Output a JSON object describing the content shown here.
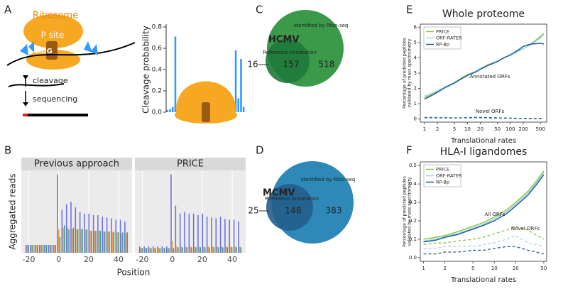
{
  "panels": [
    "A",
    "B",
    "C",
    "D",
    "E",
    "F"
  ],
  "diagram": {
    "ribosome": "Ribosome",
    "p_site": "P site",
    "codon": "AUG",
    "steps": [
      "cleavage",
      "sequencing"
    ]
  },
  "chart_data": [
    {
      "type": "bar",
      "ylabel": "Cleavage probability",
      "color": "#3399ff",
      "values": [
        0.02,
        0.03,
        0.05,
        0.71,
        0.1,
        0.12,
        0.02,
        0.01,
        0.01,
        0.01,
        0.01,
        0.01,
        0.01,
        0.01,
        0.01,
        0.01,
        0.01,
        0.01,
        0.01,
        0.01,
        0.01,
        0.01,
        0.01,
        0.02,
        0.1,
        0.12,
        0.58,
        0.13,
        0.5,
        0.05
      ],
      "ylim": [
        0,
        0.8
      ],
      "yticks": [
        {
          "value": 0,
          "label": "0.0"
        },
        {
          "value": 0.2,
          "label": "0.2"
        },
        {
          "value": 0.4,
          "label": "0.4"
        },
        {
          "value": 0.6,
          "label": "0.6"
        },
        {
          "value": 0.8,
          "label": "0.8"
        }
      ]
    },
    {
      "type": "facet-bar",
      "title": "Previous approach",
      "xlabel": "Position",
      "ylabel": "Aggregated reads",
      "x": [
        -21,
        -18,
        -15,
        -12,
        -9,
        -6,
        -3,
        0,
        3,
        6,
        9,
        12,
        15,
        18,
        21,
        24,
        27,
        30,
        33,
        36,
        39,
        42,
        45
      ],
      "series": [
        {
          "color": "#6a6ee0",
          "values": [
            0.1,
            0.1,
            0.1,
            0.1,
            0.1,
            0.1,
            0.1,
            1.0,
            0.55,
            0.62,
            0.65,
            0.58,
            0.52,
            0.5,
            0.5,
            0.48,
            0.48,
            0.46,
            0.45,
            0.44,
            0.42,
            0.42,
            0.4
          ]
        },
        {
          "color": "#e8a54a",
          "values": [
            0.1,
            0.1,
            0.1,
            0.1,
            0.1,
            0.1,
            0.1,
            0.3,
            0.32,
            0.33,
            0.3,
            0.3,
            0.3,
            0.29,
            0.28,
            0.28,
            0.28,
            0.27,
            0.27,
            0.26,
            0.26,
            0.25,
            0.25
          ]
        },
        {
          "color": "#3f9a86",
          "values": [
            0.1,
            0.1,
            0.1,
            0.1,
            0.1,
            0.1,
            0.1,
            0.2,
            0.35,
            0.3,
            0.32,
            0.3,
            0.3,
            0.3,
            0.28,
            0.28,
            0.28,
            0.27,
            0.27,
            0.27,
            0.26,
            0.26,
            0.26
          ]
        }
      ],
      "xlim": [
        -25,
        49
      ],
      "xticks": [
        -20,
        0,
        20,
        40
      ],
      "ylim": [
        0,
        1.05
      ],
      "grid": true
    },
    {
      "type": "facet-bar",
      "title": "PRICE",
      "x": [
        -21,
        -18,
        -15,
        -12,
        -9,
        -6,
        -3,
        0,
        3,
        6,
        9,
        12,
        15,
        18,
        21,
        24,
        27,
        30,
        33,
        36,
        39,
        42,
        45
      ],
      "series": [
        {
          "color": "#6a6ee0",
          "values": [
            0.08,
            0.08,
            0.08,
            0.08,
            0.08,
            0.08,
            0.08,
            1.0,
            0.6,
            0.5,
            0.52,
            0.5,
            0.5,
            0.48,
            0.5,
            0.46,
            0.45,
            0.44,
            0.46,
            0.43,
            0.42,
            0.42,
            0.4
          ]
        },
        {
          "color": "#e8a54a",
          "values": [
            0.06,
            0.06,
            0.06,
            0.06,
            0.06,
            0.06,
            0.06,
            0.15,
            0.08,
            0.08,
            0.08,
            0.08,
            0.08,
            0.08,
            0.08,
            0.08,
            0.08,
            0.08,
            0.08,
            0.08,
            0.08,
            0.08,
            0.08
          ]
        },
        {
          "color": "#3f9a86",
          "values": [
            0.06,
            0.06,
            0.06,
            0.06,
            0.06,
            0.06,
            0.06,
            0.06,
            0.07,
            0.07,
            0.07,
            0.07,
            0.07,
            0.07,
            0.07,
            0.07,
            0.07,
            0.07,
            0.07,
            0.07,
            0.07,
            0.07,
            0.07
          ]
        }
      ],
      "xlim": [
        -25,
        49
      ],
      "xticks": [
        -20,
        0,
        20,
        40
      ],
      "ylim": [
        0,
        1.05
      ],
      "grid": true
    },
    {
      "type": "venn",
      "title": "HCMV",
      "sets": [
        "Reference Annotation",
        "Identified by Ribo-seq"
      ],
      "values": [
        16,
        157,
        518
      ],
      "colors": [
        "#1f7a3a",
        "#3a9a4a"
      ]
    },
    {
      "type": "venn",
      "title": "MCMV",
      "sets": [
        "Reference Annotation",
        "Identified by Ribo-seq"
      ],
      "values": [
        25,
        148,
        383
      ],
      "colors": [
        "#245f8c",
        "#2e88b8"
      ]
    },
    {
      "type": "line",
      "title": "Whole proteome",
      "xlabel": "Translational rates",
      "ylabel": [
        "Percentage of predicted peptides",
        "validated by mass spectrometry"
      ],
      "annotations": [
        "Annotated ORFs",
        "Novel ORFs"
      ],
      "xscale": "log",
      "legend": "upper left",
      "x": [
        1,
        1.5,
        2,
        3,
        5,
        7,
        10,
        15,
        20,
        30,
        50,
        70,
        100,
        150,
        200,
        300,
        500,
        600
      ],
      "series": [
        {
          "name": "PRICE",
          "color": "#8dc63f",
          "values": [
            1.4,
            1.6,
            1.8,
            2.1,
            2.4,
            2.65,
            2.9,
            3.1,
            3.3,
            3.55,
            3.8,
            4.0,
            4.2,
            4.45,
            4.6,
            4.9,
            5.4,
            5.6
          ],
          "novel_values": [
            0.1,
            0.1,
            0.08,
            0.08,
            0.07,
            0.08,
            0.1,
            0.12,
            0.12,
            0.1,
            0.08,
            0.06,
            0.05,
            0.04,
            0.03,
            0.02,
            0.02,
            0.02
          ]
        },
        {
          "name": "ORF-RATER",
          "color": "#9fd4f0",
          "values": [
            1.5,
            1.7,
            1.85,
            2.1,
            2.4,
            2.6,
            2.85,
            3.1,
            3.3,
            3.5,
            3.8,
            4.0,
            4.15,
            4.4,
            4.6,
            4.85,
            5.3,
            5.5
          ],
          "novel_values": [
            0.05,
            0.05,
            0.05,
            0.05,
            0.05,
            0.06,
            0.06,
            0.07,
            0.07,
            0.06,
            0.05,
            0.04,
            0.04,
            0.03,
            0.03,
            0.02,
            0.02,
            0.02
          ]
        },
        {
          "name": "RP-Bp",
          "color": "#1f5f9a",
          "values": [
            1.3,
            1.55,
            1.75,
            2.05,
            2.35,
            2.6,
            2.85,
            3.05,
            3.25,
            3.5,
            3.75,
            4.0,
            4.2,
            4.5,
            4.75,
            4.9,
            4.95,
            4.9
          ],
          "novel_values": [
            0.1,
            0.1,
            0.09,
            0.09,
            0.08,
            0.08,
            0.09,
            0.1,
            0.1,
            0.09,
            0.08,
            0.07,
            0.06,
            0.05,
            0.05,
            0.04,
            0.04,
            0.04
          ]
        }
      ],
      "xlim": [
        0.8,
        700
      ],
      "xticks": [
        1,
        2,
        5,
        10,
        20,
        50,
        100,
        200,
        500
      ],
      "ylim": [
        -0.2,
        6.2
      ],
      "yticks": [
        0,
        1,
        2,
        3,
        4,
        5,
        6
      ]
    },
    {
      "type": "line",
      "title": "HLA-I ligandomes",
      "xlabel": "Translational rates",
      "ylabel": [
        "Percentage of predicted peptides",
        "validated by mass spectrometry"
      ],
      "annotations": [
        "All ORFs",
        "Novel ORFs"
      ],
      "xscale": "log",
      "legend": "upper left",
      "x": [
        1,
        1.5,
        2,
        3,
        5,
        7,
        10,
        15,
        20,
        30,
        40,
        50
      ],
      "series": [
        {
          "name": "PRICE",
          "color": "#8dc63f",
          "values": [
            0.1,
            0.11,
            0.12,
            0.14,
            0.17,
            0.19,
            0.22,
            0.26,
            0.3,
            0.36,
            0.42,
            0.47
          ],
          "novel_values": [
            0.07,
            0.08,
            0.08,
            0.09,
            0.1,
            0.11,
            0.13,
            0.15,
            0.17,
            0.15,
            0.12,
            0.1
          ]
        },
        {
          "name": "ORF-RATER",
          "color": "#9fd4f0",
          "values": [
            0.09,
            0.1,
            0.115,
            0.13,
            0.16,
            0.18,
            0.21,
            0.25,
            0.29,
            0.35,
            0.41,
            0.46
          ],
          "novel_values": [
            0.05,
            0.05,
            0.06,
            0.06,
            0.06,
            0.07,
            0.08,
            0.1,
            0.12,
            0.08,
            0.07,
            0.06
          ]
        },
        {
          "name": "RP-Bp",
          "color": "#1f5f9a",
          "values": [
            0.085,
            0.095,
            0.11,
            0.125,
            0.155,
            0.175,
            0.2,
            0.24,
            0.28,
            0.34,
            0.4,
            0.45
          ],
          "novel_values": [
            0.02,
            0.02,
            0.03,
            0.03,
            0.04,
            0.04,
            0.05,
            0.06,
            0.06,
            0.04,
            0.03,
            0.02
          ]
        }
      ],
      "xlim": [
        0.9,
        55
      ],
      "xticks": [
        1,
        2,
        5,
        10,
        20,
        50
      ],
      "ylim": [
        -0.02,
        0.52
      ],
      "yticks": [
        {
          "value": 0,
          "label": "0.0"
        },
        {
          "value": 0.1,
          "label": "0.1"
        },
        {
          "value": 0.2,
          "label": "0.2"
        },
        {
          "value": 0.3,
          "label": "0.3"
        },
        {
          "value": 0.4,
          "label": "0.4"
        },
        {
          "value": 0.5,
          "label": "0.5"
        }
      ]
    }
  ]
}
